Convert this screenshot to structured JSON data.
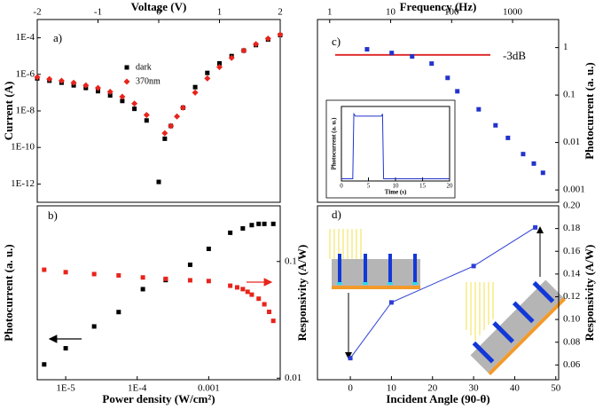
{
  "chart_data": [
    {
      "type": "scatter",
      "panel_label": "a)",
      "xlabel": "Voltage (V)",
      "ylabel": "Current (A)",
      "xlim": [
        -2,
        2
      ],
      "xticks": [
        -2,
        -1,
        0,
        1,
        2
      ],
      "yscale": "log",
      "ylim": [
        1e-13,
        0.001
      ],
      "yticks": [
        {
          "value": 0.0001,
          "label": "1E-4"
        },
        {
          "value": 1e-06,
          "label": "1E-6"
        },
        {
          "value": 1e-08,
          "label": "1E-8"
        },
        {
          "value": 1e-10,
          "label": "1E-10"
        },
        {
          "value": 1e-12,
          "label": "1E-12"
        }
      ],
      "legend": "upper center",
      "series": [
        {
          "name": "dark",
          "color": "#000000",
          "marker": "square",
          "x": [
            -2,
            -1.8,
            -1.6,
            -1.4,
            -1.2,
            -1,
            -0.8,
            -0.6,
            -0.4,
            -0.2,
            0,
            0.1,
            0.2,
            0.4,
            0.6,
            0.8,
            1,
            1.2,
            1.4,
            1.6,
            1.8,
            2
          ],
          "values": [
            6e-07,
            4.5e-07,
            3.5e-07,
            2.5e-07,
            1.8e-07,
            1.2e-07,
            7e-08,
            3.5e-08,
            1.3e-08,
            3e-09,
            1.3e-12,
            3e-10,
            1.5e-09,
            1.5e-08,
            2e-07,
            1.2e-06,
            4e-06,
            1e-05,
            2e-05,
            4e-05,
            8e-05,
            0.00014
          ]
        },
        {
          "name": "370nm",
          "color": "#e8241c",
          "marker": "diamond",
          "x": [
            -2,
            -1.8,
            -1.6,
            -1.4,
            -1.2,
            -1,
            -0.8,
            -0.6,
            -0.4,
            -0.2,
            0.1,
            0.2,
            0.3,
            0.4,
            0.6,
            0.8,
            1,
            1.2,
            1.4,
            1.6,
            1.8,
            2
          ],
          "values": [
            7e-07,
            5.5e-07,
            4.5e-07,
            3.5e-07,
            2.5e-07,
            1.8e-07,
            1.1e-07,
            6e-08,
            2.5e-08,
            6e-09,
            6e-10,
            1.5e-09,
            5e-09,
            1.5e-08,
            1e-07,
            6e-07,
            2.5e-06,
            8e-06,
            2e-05,
            4.5e-05,
            9e-05,
            0.00015
          ]
        }
      ]
    },
    {
      "type": "scatter",
      "panel_label": "b)",
      "xlabel": "Power density (W/cm²)",
      "ylabel": "Photocurrent (a. u.)",
      "y2label": "Responsivity (A/W)",
      "xscale": "log",
      "xlim": [
        4e-06,
        0.01
      ],
      "xticks": [
        {
          "value": 1e-05,
          "label": "1E-5"
        },
        {
          "value": 0.0001,
          "label": "1E-4"
        },
        0.001
      ],
      "yscale": "log",
      "ylim": [
        1,
        100
      ],
      "y2scale": "log",
      "y2lim": [
        0.0097,
        0.3
      ],
      "y2ticks": [
        0.01,
        0.1
      ],
      "series": [
        {
          "color": "#000000",
          "marker": "square",
          "x": [
            5e-06,
            1e-05,
            2.5e-05,
            5.5e-05,
            0.00012,
            0.00025,
            0.00055,
            0.001,
            0.002,
            0.003,
            0.004,
            0.005,
            0.006,
            0.008
          ],
          "values": [
            1.5,
            2.3,
            4.1,
            6,
            11,
            14,
            21,
            32,
            49,
            55,
            60,
            62,
            62,
            62
          ]
        },
        {
          "color": "#e8241c",
          "marker": "square",
          "axis": "y2",
          "x": [
            5e-06,
            1e-05,
            2.5e-05,
            5.5e-05,
            0.00012,
            0.00025,
            0.00055,
            0.001,
            0.002,
            0.0025,
            0.003,
            0.0035,
            0.004,
            0.005,
            0.006,
            0.007,
            0.008
          ],
          "values": [
            0.085,
            0.081,
            0.078,
            0.076,
            0.073,
            0.071,
            0.069,
            0.068,
            0.062,
            0.06,
            0.058,
            0.055,
            0.052,
            0.048,
            0.043,
            0.037,
            0.031
          ]
        }
      ]
    },
    {
      "type": "scatter",
      "panel_label": "c)",
      "xlabel": "Frequency (Hz)",
      "ylabel": "Photocurrent (a. u.)",
      "xscale": "log",
      "xlim": [
        0.63,
        5700
      ],
      "xticks": [
        1,
        10,
        100,
        1000
      ],
      "yscale": "log",
      "ylim": [
        0.00055,
        3.9
      ],
      "yticks": [
        0.001,
        0.01,
        0.1,
        1
      ],
      "reference_line": {
        "value": 0.7,
        "label": "-3dB",
        "color": "#e03030"
      },
      "series": [
        {
          "color": "#2233cc",
          "marker": "square",
          "x": [
            4.1,
            10.4,
            22.5,
            47,
            86,
            124,
            278,
            525,
            839,
            1490,
            2230,
            3150
          ],
          "values": [
            0.92,
            0.77,
            0.65,
            0.46,
            0.23,
            0.12,
            0.05,
            0.023,
            0.0125,
            0.0057,
            0.0036,
            0.0023
          ]
        }
      ]
    },
    {
      "type": "line",
      "xlabel": "Time (s)",
      "ylabel": "Photocurrent (a. u.)",
      "xlim": [
        0,
        20
      ],
      "xticks": [
        0,
        5,
        10,
        15,
        20
      ],
      "ylim": [
        0,
        1
      ],
      "series": [
        {
          "color": "#2233cc",
          "x": [
            0,
            2.1,
            2.3,
            2.6,
            7.4,
            7.6,
            7.8,
            20
          ],
          "values": [
            0.03,
            0.03,
            0.9,
            0.87,
            0.87,
            0.9,
            0.03,
            0.03
          ]
        }
      ]
    },
    {
      "type": "line",
      "panel_label": "d)",
      "xlabel": "Incident Angle (90-θ)",
      "ylabel": "Responsivity (A/W)",
      "xlim": [
        -8,
        50.7
      ],
      "xticks": [
        0,
        10,
        20,
        30,
        40,
        50
      ],
      "ylim": [
        0.047,
        0.2
      ],
      "yticks": [
        0.06,
        0.08,
        {
          "value": 0.1,
          "label": "0.10"
        },
        0.12,
        0.14,
        0.16,
        0.18,
        {
          "value": 0.2,
          "label": "0.20"
        }
      ],
      "series": [
        {
          "color": "#2c3ed6",
          "marker": "square",
          "x": [
            0,
            10,
            30,
            45
          ],
          "values": [
            0.066,
            0.115,
            0.147,
            0.181
          ]
        }
      ]
    }
  ]
}
